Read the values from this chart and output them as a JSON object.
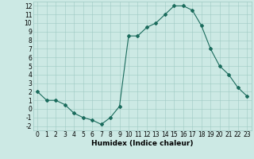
{
  "x": [
    0,
    1,
    2,
    3,
    4,
    5,
    6,
    7,
    8,
    9,
    10,
    11,
    12,
    13,
    14,
    15,
    16,
    17,
    18,
    19,
    20,
    21,
    22,
    23
  ],
  "y": [
    2,
    1,
    1,
    0.5,
    -0.5,
    -1,
    -1.3,
    -1.8,
    -1,
    0.3,
    8.5,
    8.5,
    9.5,
    10,
    11,
    12,
    12,
    11.5,
    9.7,
    7,
    5,
    4,
    2.5,
    1.5
  ],
  "line_color": "#1a6b5c",
  "marker": "D",
  "marker_size": 2,
  "bg_color": "#cce9e4",
  "grid_color": "#9ec9c2",
  "xlabel": "Humidex (Indice chaleur)",
  "xlim": [
    -0.5,
    23.5
  ],
  "ylim": [
    -2.5,
    12.5
  ],
  "yticks": [
    -2,
    -1,
    0,
    1,
    2,
    3,
    4,
    5,
    6,
    7,
    8,
    9,
    10,
    11,
    12
  ],
  "xticks": [
    0,
    1,
    2,
    3,
    4,
    5,
    6,
    7,
    8,
    9,
    10,
    11,
    12,
    13,
    14,
    15,
    16,
    17,
    18,
    19,
    20,
    21,
    22,
    23
  ],
  "tick_fontsize": 5.5,
  "xlabel_fontsize": 6.5
}
